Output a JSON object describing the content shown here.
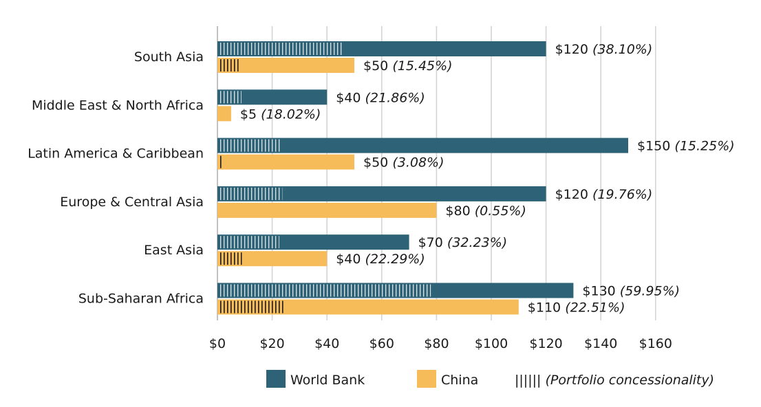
{
  "chart_data": {
    "type": "bar",
    "orientation": "horizontal",
    "title": "",
    "xlabel": "",
    "ylabel": "",
    "xlim": [
      0,
      160
    ],
    "x_ticks": [
      0,
      20,
      40,
      60,
      80,
      100,
      120,
      140,
      160
    ],
    "x_tick_prefix": "$",
    "grid": true,
    "categories": [
      "South Asia",
      "Middle East & North Africa",
      "Latin America & Caribbean",
      "Europe & Central Asia",
      "East Asia",
      "Sub-Saharan Africa"
    ],
    "series": [
      {
        "name": "World Bank",
        "color": "#2e6277",
        "values": [
          120,
          40,
          150,
          120,
          70,
          130
        ],
        "concessionality": [
          38.1,
          21.86,
          15.25,
          19.76,
          32.23,
          59.95
        ],
        "value_labels": [
          "$120",
          "$40",
          "$150",
          "$120",
          "$70",
          "$130"
        ],
        "pct_labels": [
          "(38.10%)",
          "(21.86%)",
          "(15.25%)",
          "(19.76%)",
          "(32.23%)",
          "(59.95%)"
        ]
      },
      {
        "name": "China",
        "color": "#f6bc59",
        "values": [
          50,
          5,
          50,
          80,
          40,
          110
        ],
        "concessionality": [
          15.45,
          18.02,
          3.08,
          0.55,
          22.29,
          22.51
        ],
        "value_labels": [
          "$50",
          "$5",
          "$50",
          "$80",
          "$40",
          "$110"
        ],
        "pct_labels": [
          "(15.45%)",
          "(18.02%)",
          "(3.08%)",
          "(0.55%)",
          "(22.29%)",
          "(22.51%)"
        ]
      }
    ],
    "legend": {
      "position": "bottom",
      "items": [
        {
          "label": "World Bank",
          "kind": "swatch",
          "color": "#2e6277"
        },
        {
          "label": "China",
          "kind": "swatch",
          "color": "#f6bc59"
        },
        {
          "label": "(Portfolio concessionality)",
          "kind": "hatch",
          "glyph": "||||||"
        }
      ]
    }
  }
}
